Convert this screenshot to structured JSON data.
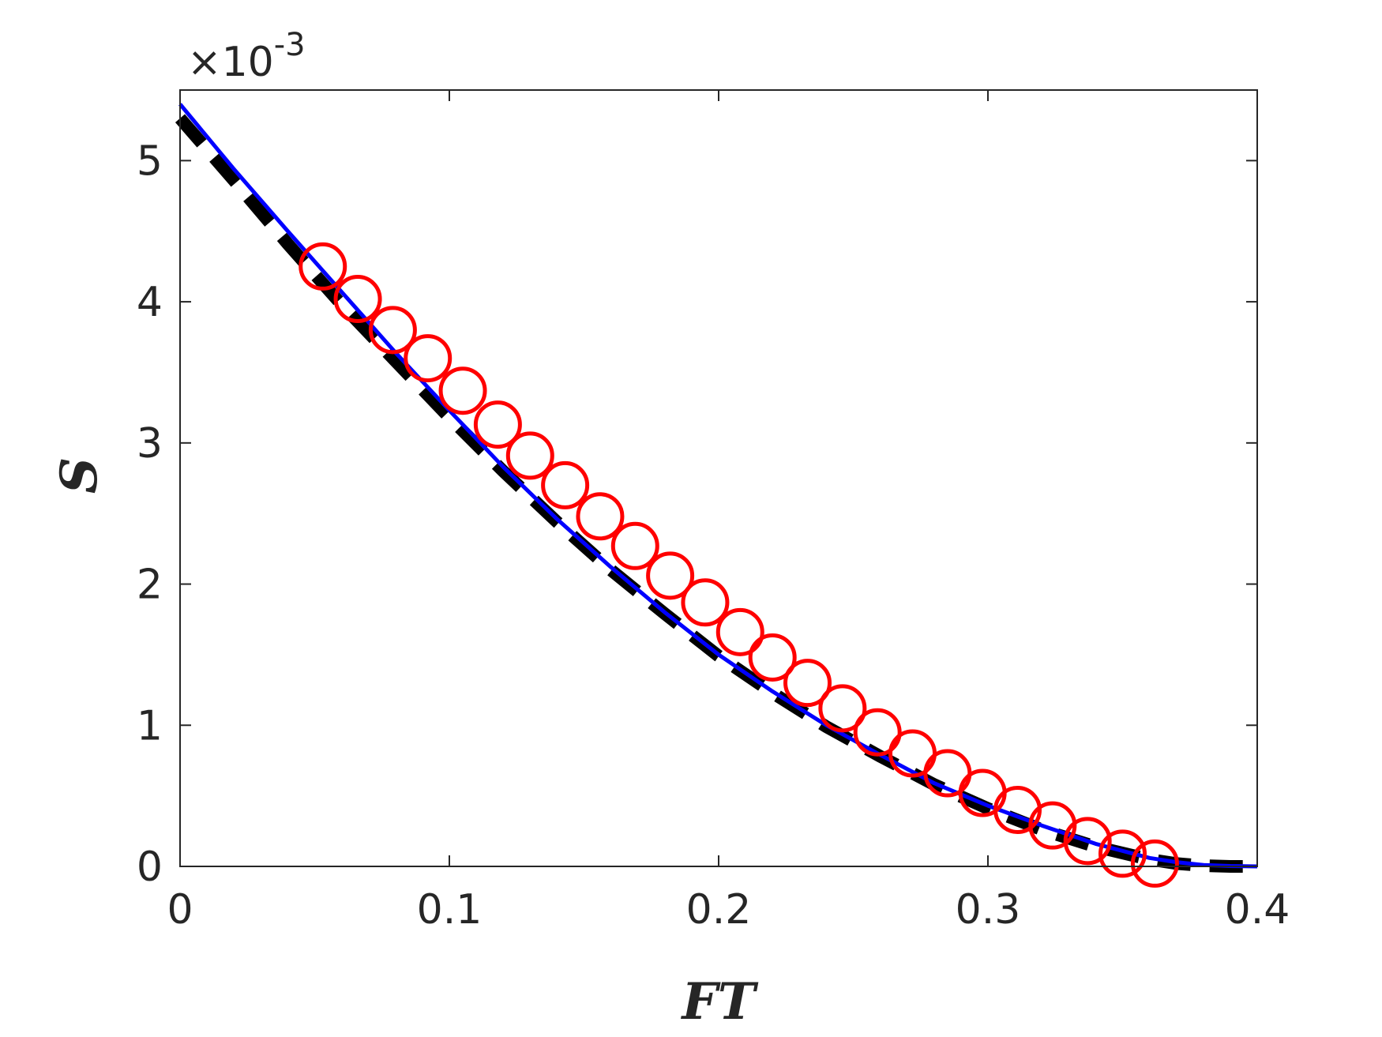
{
  "chart_data": {
    "type": "line",
    "xlabel": "FT",
    "ylabel": "S",
    "xlim": [
      0,
      0.4
    ],
    "ylim": [
      0,
      0.0055
    ],
    "x_ticks": [
      0,
      0.1,
      0.2,
      0.3,
      0.4
    ],
    "x_tick_labels": [
      "0",
      "0.1",
      "0.2",
      "0.3",
      "0.4"
    ],
    "y_ticks": [
      0,
      0.001,
      0.002,
      0.003,
      0.004,
      0.005
    ],
    "y_tick_labels": [
      "0",
      "1",
      "2",
      "3",
      "4",
      "5"
    ],
    "y_exponent_label": {
      "times": "×10",
      "power": "-3"
    },
    "grid": false,
    "legend": "none",
    "series": [
      {
        "style": "solid",
        "color": "#0000ff",
        "x": [
          0,
          0.02,
          0.04,
          0.06,
          0.08,
          0.1,
          0.12,
          0.14,
          0.16,
          0.18,
          0.2,
          0.22,
          0.24,
          0.26,
          0.28,
          0.3,
          0.32,
          0.34,
          0.36,
          0.37,
          0.38,
          0.39,
          0.4
        ],
        "y": [
          0.0054,
          0.00494,
          0.0045,
          0.00407,
          0.00364,
          0.00323,
          0.00283,
          0.00246,
          0.00212,
          0.0018,
          0.0015,
          0.00124,
          0.001,
          0.00079,
          0.00059,
          0.00043,
          0.00029,
          0.00016,
          6e-05,
          3e-05,
          1e-05,
          3e-06,
          0
        ]
      },
      {
        "style": "dashed",
        "color": "#000000",
        "x": [
          0,
          0.02,
          0.04,
          0.06,
          0.08,
          0.1,
          0.12,
          0.14,
          0.16,
          0.18,
          0.2,
          0.22,
          0.24,
          0.26,
          0.28,
          0.3,
          0.32,
          0.34,
          0.36,
          0.37,
          0.38,
          0.39,
          0.4
        ],
        "y": [
          0.0053,
          0.00486,
          0.00441,
          0.00398,
          0.00358,
          0.00318,
          0.0028,
          0.00244,
          0.0021,
          0.00179,
          0.00149,
          0.00123,
          0.00099,
          0.00078,
          0.00058,
          0.00041,
          0.00026,
          0.00014,
          5e-05,
          2e-05,
          5e-06,
          0,
          0
        ]
      },
      {
        "style": "markers",
        "marker": "circle",
        "color": "#ff0000",
        "x": [
          0.053,
          0.066,
          0.079,
          0.092,
          0.105,
          0.118,
          0.13,
          0.143,
          0.156,
          0.169,
          0.182,
          0.195,
          0.208,
          0.22,
          0.233,
          0.246,
          0.259,
          0.272,
          0.285,
          0.298,
          0.311,
          0.324,
          0.337,
          0.35,
          0.362
        ],
        "y": [
          0.00425,
          0.00402,
          0.0038,
          0.0036,
          0.00337,
          0.00313,
          0.00291,
          0.0027,
          0.00248,
          0.00227,
          0.00206,
          0.00187,
          0.00166,
          0.00148,
          0.0013,
          0.00112,
          0.00095,
          0.0008,
          0.00066,
          0.00052,
          0.0004,
          0.00029,
          0.00018,
          9e-05,
          2e-05
        ]
      }
    ]
  }
}
